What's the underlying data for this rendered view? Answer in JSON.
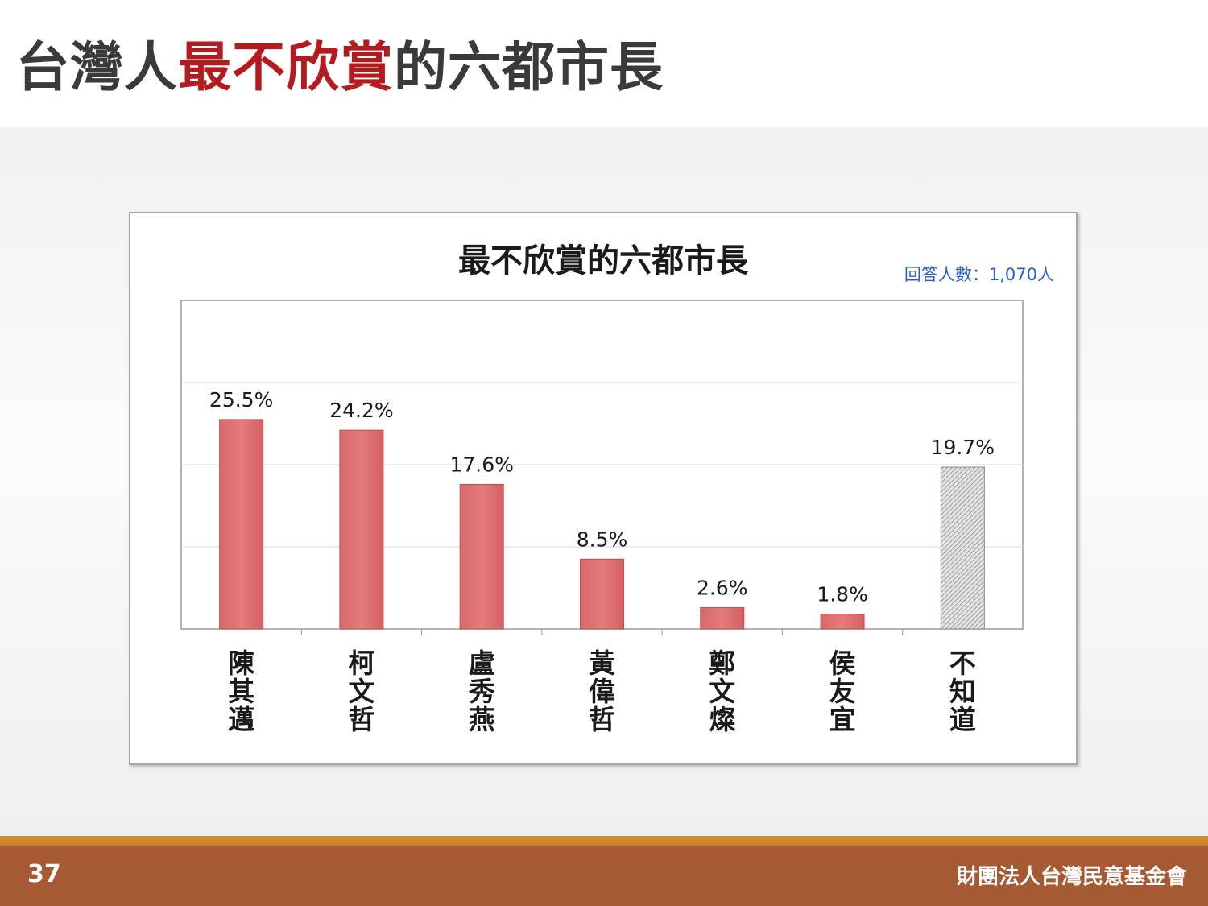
{
  "slide": {
    "title_prefix": "台灣人",
    "title_highlight": "最不欣賞",
    "title_suffix": "的六都市長",
    "page_number": "37",
    "organization": "財團法人台灣民意基金會"
  },
  "colors": {
    "bar": "#e07374",
    "bar_unknown": "#c8c8c8",
    "title_highlight": "#b51a1f",
    "note": "#2b5fd0",
    "footer": "#a65a33"
  },
  "chart_data": {
    "type": "bar",
    "title": "最不欣賞的六都市長",
    "note": "回答人數：1,070人",
    "categories": [
      "陳其邁",
      "柯文哲",
      "盧秀燕",
      "黃偉哲",
      "鄭文燦",
      "侯友宜",
      "不知道"
    ],
    "values": [
      25.5,
      24.2,
      17.6,
      8.5,
      2.6,
      1.8,
      19.7
    ],
    "labels": [
      "25.5%",
      "24.2%",
      "17.6%",
      "8.5%",
      "2.6%",
      "1.8%",
      "19.7%"
    ],
    "ylim": [
      0,
      40
    ],
    "grid": true,
    "legend": "none",
    "hatched_categories": [
      "不知道"
    ]
  }
}
